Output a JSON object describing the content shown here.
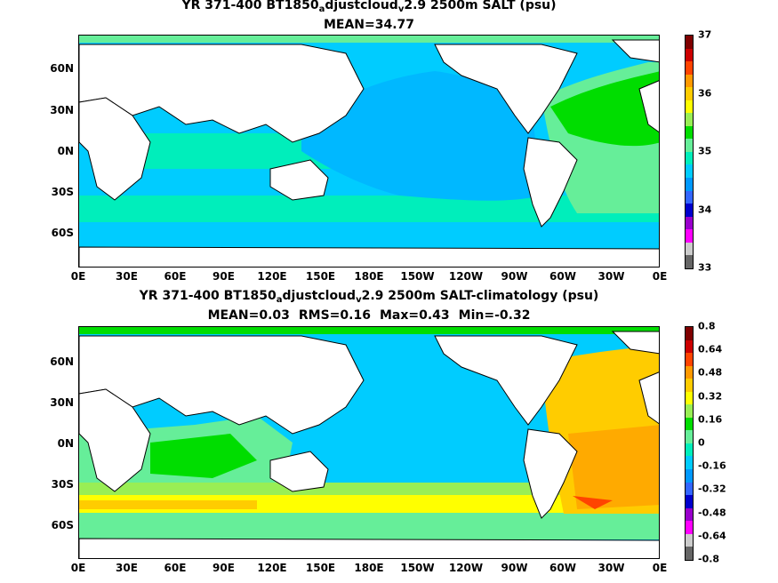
{
  "panels": [
    {
      "title_a": "YR 371-400 BT1850",
      "title_sub1": "a",
      "title_b": "djustcloud",
      "title_sub2": "v",
      "title_c": "2.9 2500m SALT (psu)",
      "stats": [
        "MEAN=34.77"
      ],
      "colorbar_labels": [
        "37",
        "36",
        "35",
        "34",
        "33"
      ],
      "colorbar_colors": [
        "#7f0000",
        "#cc0000",
        "#ff4400",
        "#ff9900",
        "#ffcc00",
        "#ffff00",
        "#99ee55",
        "#00dd00",
        "#66ee99",
        "#00eebb",
        "#00ccff",
        "#0099ff",
        "#3366ff",
        "#0000cc",
        "#9900cc",
        "#ff00ff",
        "#cccccc",
        "#666666"
      ]
    },
    {
      "title_a": "YR 371-400 BT1850",
      "title_sub1": "a",
      "title_b": "djustcloud",
      "title_sub2": "v",
      "title_c": "2.9 2500m SALT-climatology (psu)",
      "stats": [
        "MEAN=0.03",
        "RMS=0.16",
        "Max=0.43",
        "Min=-0.32"
      ],
      "colorbar_labels": [
        "0.8",
        "0.64",
        "0.48",
        "0.32",
        "0.16",
        "0",
        "-0.16",
        "-0.32",
        "-0.48",
        "-0.64",
        "-0.8"
      ],
      "colorbar_colors": [
        "#7f0000",
        "#cc0000",
        "#ff4400",
        "#ff9900",
        "#ffcc00",
        "#ffff00",
        "#99ee55",
        "#00dd00",
        "#66ee99",
        "#00eebb",
        "#00ccff",
        "#0099ff",
        "#3366ff",
        "#0000cc",
        "#9900cc",
        "#ff00ff",
        "#cccccc",
        "#666666"
      ]
    }
  ],
  "x_ticks": [
    "0E",
    "30E",
    "60E",
    "90E",
    "120E",
    "150E",
    "180E",
    "150W",
    "120W",
    "90W",
    "60W",
    "30W",
    "0E"
  ],
  "y_ticks": [
    "60N",
    "30N",
    "0N",
    "30S",
    "60S"
  ],
  "colors": {
    "land": "#ffffff",
    "coast": "#000000"
  }
}
